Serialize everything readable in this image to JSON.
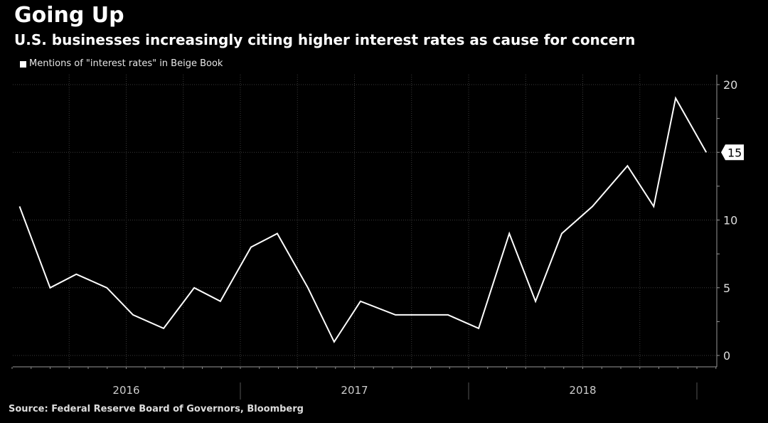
{
  "title": "Going Up",
  "subtitle": "U.S. businesses increasingly citing higher interest rates as cause for concern",
  "source": "Source: Federal Reserve Board of Governors, Bloomberg",
  "chart_data": {
    "type": "line",
    "title": "Going Up",
    "subtitle": "U.S. businesses increasingly citing higher interest rates as cause for concern",
    "xlabel": "",
    "ylabel": "",
    "legend_position": "top-left",
    "grid": true,
    "y_axis_side": "right",
    "ylim": [
      0,
      20
    ],
    "yticks": [
      "0",
      "5",
      "10",
      "15",
      "20"
    ],
    "xlim": [
      "2016-01-01",
      "2019-01-28"
    ],
    "xtick_labels": [
      "2016",
      "2017",
      "2018"
    ],
    "last_value_label": "15",
    "colors": {
      "background": "#000000",
      "line": "#ffffff",
      "grid": "#3a3a3a"
    },
    "series": [
      {
        "name": "Mentions of \"interest rates\" in Beige Book",
        "x": [
          "2016-01-13",
          "2016-03-02",
          "2016-04-13",
          "2016-06-01",
          "2016-07-13",
          "2016-08-31",
          "2016-10-19",
          "2016-11-30",
          "2017-01-18",
          "2017-03-01",
          "2017-04-19",
          "2017-05-31",
          "2017-07-12",
          "2017-09-06",
          "2017-10-18",
          "2017-11-29",
          "2018-01-17",
          "2018-03-07",
          "2018-04-18",
          "2018-05-30",
          "2018-07-18",
          "2018-09-12",
          "2018-10-24",
          "2018-11-28",
          "2019-01-16"
        ],
        "values": [
          11,
          5,
          6,
          5,
          3,
          2,
          5,
          4,
          8,
          9,
          5,
          1,
          4,
          3,
          3,
          3,
          2,
          9,
          4,
          9,
          11,
          14,
          11,
          19,
          15
        ]
      }
    ]
  }
}
